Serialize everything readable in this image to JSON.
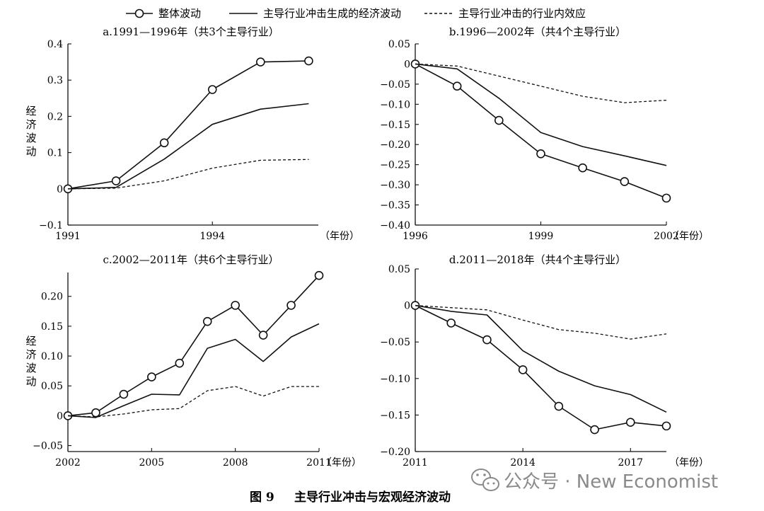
{
  "legend": {
    "overall": "整体波动",
    "leading": "主导行业冲击生成的经济波动",
    "intra": "主导行业冲击的行业内效应"
  },
  "ylabel_chars": [
    "经",
    "济",
    "波",
    "动"
  ],
  "xunit": "（年份）",
  "caption": {
    "number": "图 9",
    "title": "主导行业冲击与宏观经济波动"
  },
  "watermark": {
    "text": "公众号 · New Economist",
    "icon": "wechat-icon"
  },
  "chart_data": [
    {
      "type": "line",
      "title": "a.1991—1996年（共3个主导行业）",
      "x": [
        1991,
        1992,
        1993,
        1994,
        1995,
        1996
      ],
      "xlim": [
        1991,
        1996.2
      ],
      "ylim": [
        -0.1,
        0.4
      ],
      "yticks": [
        -0.1,
        0,
        0.1,
        0.2,
        0.3,
        0.4
      ],
      "yticklabels": [
        "−0.1",
        "0",
        "0.1",
        "0.2",
        "0.3",
        "0.4"
      ],
      "xticks": [
        1991,
        1994
      ],
      "show_ylabel": true,
      "series": [
        {
          "key": "overall",
          "values": [
            0,
            0.022,
            0.127,
            0.274,
            0.35,
            0.353
          ]
        },
        {
          "key": "leading",
          "values": [
            0,
            0.004,
            0.082,
            0.178,
            0.22,
            0.235
          ]
        },
        {
          "key": "intra",
          "values": [
            0,
            0.002,
            0.022,
            0.057,
            0.079,
            0.081
          ]
        }
      ]
    },
    {
      "type": "line",
      "title": "b.1996—2002年（共4个主导行业）",
      "x": [
        1996,
        1997,
        1998,
        1999,
        2000,
        2001,
        2002
      ],
      "xlim": [
        1996,
        2002
      ],
      "ylim": [
        -0.4,
        0.05
      ],
      "yticks": [
        0.05,
        0,
        -0.05,
        -0.1,
        -0.15,
        -0.2,
        -0.25,
        -0.3,
        -0.35,
        -0.4
      ],
      "yticklabels": [
        "0.05",
        "0",
        "−0.05",
        "−0.10",
        "−0.15",
        "−0.20",
        "−0.25",
        "−0.30",
        "−0.35",
        "−0.40"
      ],
      "xticks": [
        1996,
        1999,
        2002
      ],
      "show_ylabel": false,
      "series": [
        {
          "key": "overall",
          "values": [
            0,
            -0.055,
            -0.14,
            -0.223,
            -0.258,
            -0.292,
            -0.333
          ]
        },
        {
          "key": "leading",
          "values": [
            0,
            -0.012,
            -0.085,
            -0.17,
            -0.205,
            -0.228,
            -0.252
          ]
        },
        {
          "key": "intra",
          "values": [
            0,
            -0.005,
            -0.03,
            -0.055,
            -0.08,
            -0.096,
            -0.09
          ]
        }
      ]
    },
    {
      "type": "line",
      "title": "c.2002—2011年（共6个主导行业）",
      "x": [
        2002,
        2003,
        2004,
        2005,
        2006,
        2007,
        2008,
        2009,
        2010,
        2011
      ],
      "xlim": [
        2002,
        2011
      ],
      "ylim": [
        -0.06,
        0.24
      ],
      "yticks": [
        0.2,
        0.15,
        0.1,
        0.05,
        0,
        -0.05
      ],
      "yticklabels": [
        "0.20",
        "0.15",
        "0.10",
        "0.05",
        "0",
        "−0.05"
      ],
      "xticks": [
        2002,
        2005,
        2008,
        2011
      ],
      "show_ylabel": true,
      "series": [
        {
          "key": "overall",
          "values": [
            0,
            0.005,
            0.036,
            0.065,
            0.088,
            0.158,
            0.185,
            0.135,
            0.185,
            0.235
          ]
        },
        {
          "key": "leading",
          "values": [
            0,
            -0.003,
            0.017,
            0.036,
            0.035,
            0.113,
            0.128,
            0.091,
            0.132,
            0.154
          ]
        },
        {
          "key": "intra",
          "values": [
            0,
            -0.002,
            0.003,
            0.01,
            0.012,
            0.042,
            0.049,
            0.033,
            0.049,
            0.049
          ]
        }
      ]
    },
    {
      "type": "line",
      "title": "d.2011—2018年（共4个主导行业）",
      "x": [
        2011,
        2012,
        2013,
        2014,
        2015,
        2016,
        2017,
        2018
      ],
      "xlim": [
        2011,
        2018
      ],
      "ylim": [
        -0.2,
        0.05
      ],
      "yticks": [
        0.05,
        0,
        -0.05,
        -0.1,
        -0.15,
        -0.2
      ],
      "yticklabels": [
        "0.05",
        "0",
        "−0.05",
        "−0.10",
        "−0.15",
        "−0.20"
      ],
      "xticks": [
        2011,
        2014,
        2017
      ],
      "show_ylabel": false,
      "series": [
        {
          "key": "overall",
          "values": [
            0,
            -0.024,
            -0.047,
            -0.088,
            -0.138,
            -0.17,
            -0.16,
            -0.165
          ]
        },
        {
          "key": "leading",
          "values": [
            0,
            -0.008,
            -0.013,
            -0.062,
            -0.09,
            -0.11,
            -0.122,
            -0.146
          ]
        },
        {
          "key": "intra",
          "values": [
            0,
            -0.003,
            -0.006,
            -0.02,
            -0.033,
            -0.038,
            -0.046,
            -0.039
          ]
        }
      ]
    }
  ]
}
